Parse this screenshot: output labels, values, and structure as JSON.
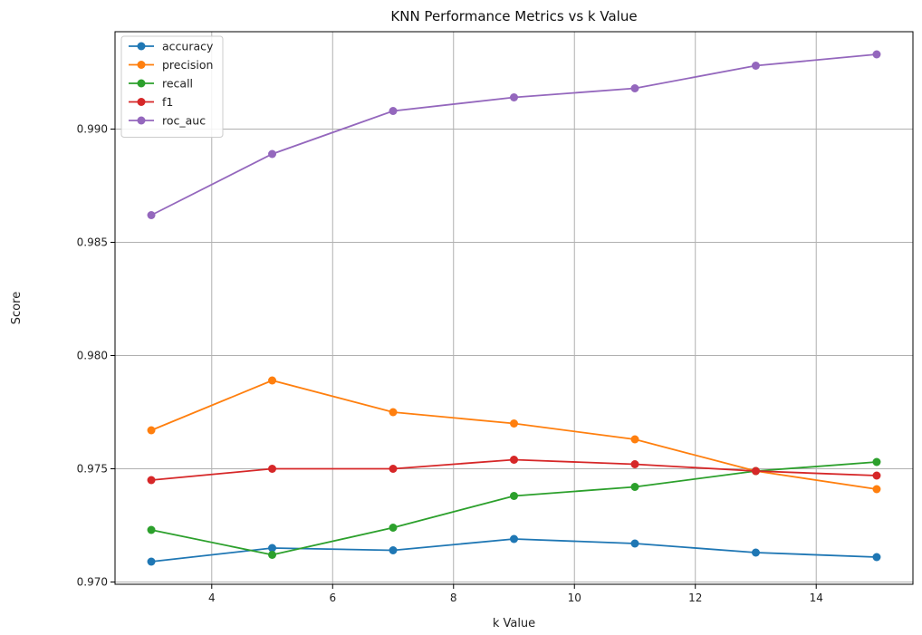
{
  "chart_data": {
    "type": "line",
    "title": "KNN Performance Metrics vs k Value",
    "xlabel": "k Value",
    "ylabel": "Score",
    "x": [
      3,
      5,
      7,
      9,
      11,
      13,
      15
    ],
    "xlim": [
      2.4,
      15.6
    ],
    "ylim": [
      0.9699,
      0.9943
    ],
    "xticks": [
      4,
      6,
      8,
      10,
      12,
      14
    ],
    "xtick_labels": [
      "4",
      "6",
      "8",
      "10",
      "12",
      "14"
    ],
    "yticks": [
      0.97,
      0.975,
      0.98,
      0.985,
      0.99
    ],
    "ytick_labels": [
      "0.970",
      "0.975",
      "0.980",
      "0.985",
      "0.990"
    ],
    "grid": true,
    "legend_position": "top-left",
    "series": [
      {
        "name": "accuracy",
        "color": "#1f77b4",
        "values": [
          0.9709,
          0.9715,
          0.9714,
          0.9719,
          0.9717,
          0.9713,
          0.9711
        ]
      },
      {
        "name": "precision",
        "color": "#ff7f0e",
        "values": [
          0.9767,
          0.9789,
          0.9775,
          0.977,
          0.9763,
          0.9749,
          0.9741
        ]
      },
      {
        "name": "recall",
        "color": "#2ca02c",
        "values": [
          0.9723,
          0.9712,
          0.9724,
          0.9738,
          0.9742,
          0.9749,
          0.9753
        ]
      },
      {
        "name": "f1",
        "color": "#d62728",
        "values": [
          0.9745,
          0.975,
          0.975,
          0.9754,
          0.9752,
          0.9749,
          0.9747
        ]
      },
      {
        "name": "roc_auc",
        "color": "#9467bd",
        "values": [
          0.9862,
          0.9889,
          0.9908,
          0.9914,
          0.9918,
          0.9928,
          0.9933
        ]
      }
    ]
  }
}
